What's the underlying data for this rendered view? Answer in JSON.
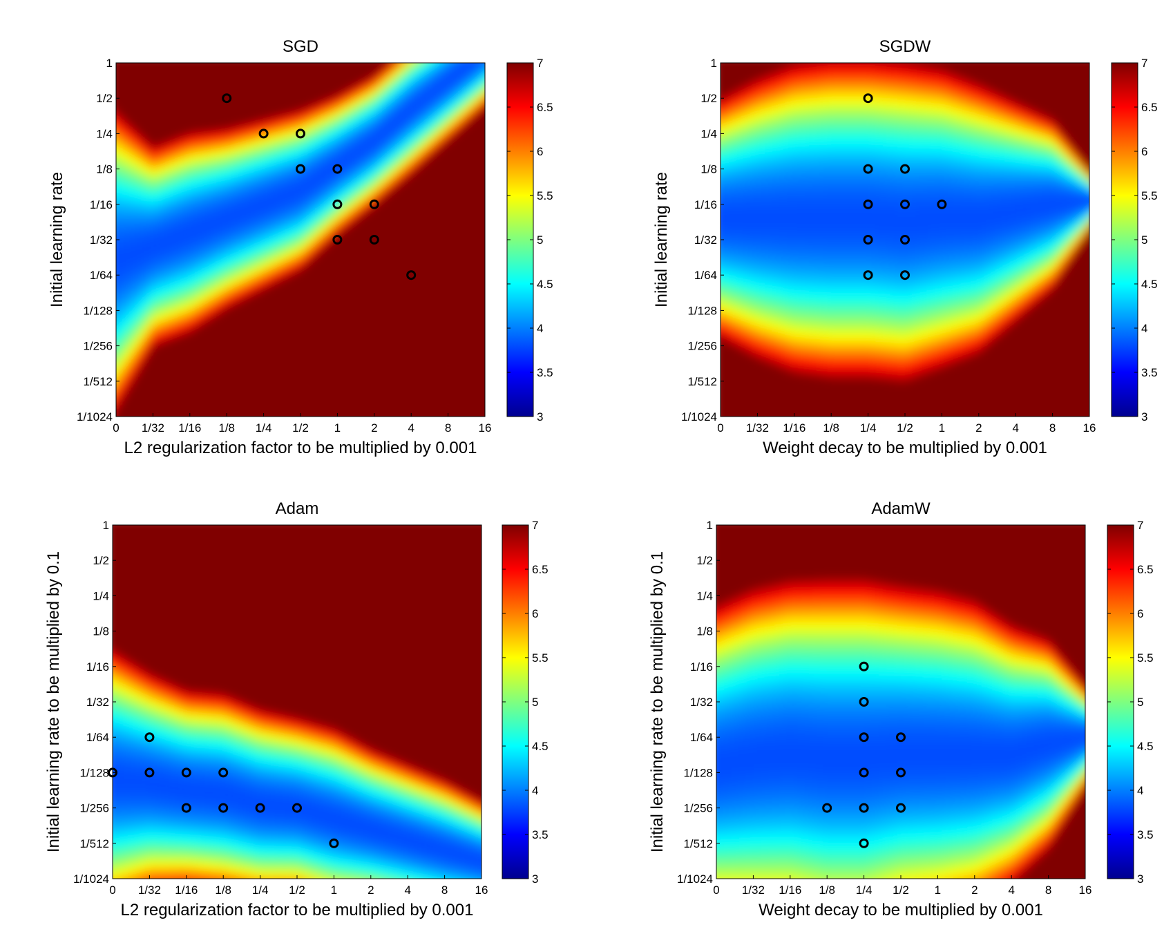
{
  "chart_data": [
    {
      "type": "heatmap",
      "title": "SGD",
      "xlabel": "L2 regularization factor to be multiplied by 0.001",
      "ylabel": "Initial learning rate",
      "x_categories": [
        "0",
        "1/32",
        "1/16",
        "1/8",
        "1/4",
        "1/2",
        "1",
        "2",
        "4",
        "8",
        "16"
      ],
      "y_categories": [
        "1",
        "1/2",
        "1/4",
        "1/8",
        "1/16",
        "1/32",
        "1/64",
        "1/128",
        "1/256",
        "1/512",
        "1/1024"
      ],
      "colorbar": {
        "min": 3,
        "max": 7,
        "ticks": [
          "3",
          "3.5",
          "4",
          "4.5",
          "5",
          "5.5",
          "6",
          "6.5",
          "7"
        ],
        "colormap": "jet"
      },
      "valley": [
        [
          0,
          5.6,
          3
        ],
        [
          1,
          5.2,
          2
        ],
        [
          2,
          4.8,
          2
        ],
        [
          3,
          4.4,
          1.8
        ],
        [
          4,
          4.0,
          1.7
        ],
        [
          5,
          3.6,
          1.6
        ],
        [
          6,
          2.9,
          1.4
        ],
        [
          7,
          2.2,
          1.3
        ],
        [
          8,
          1.3,
          1.3
        ],
        [
          9,
          0.5,
          1.2
        ],
        [
          10,
          -0.3,
          1.1
        ]
      ],
      "best_points": [
        {
          "x": "1/8",
          "y": "1/2"
        },
        {
          "x": "1/4",
          "y": "1/4"
        },
        {
          "x": "1/2",
          "y": "1/4"
        },
        {
          "x": "1/2",
          "y": "1/8"
        },
        {
          "x": "1",
          "y": "1/8"
        },
        {
          "x": "1",
          "y": "1/16"
        },
        {
          "x": "2",
          "y": "1/16"
        },
        {
          "x": "1",
          "y": "1/32"
        },
        {
          "x": "2",
          "y": "1/32"
        },
        {
          "x": "4",
          "y": "1/64"
        }
      ]
    },
    {
      "type": "heatmap",
      "title": "SGDW",
      "xlabel": "Weight decay to be multiplied by 0.001",
      "ylabel": "Initial learning rate",
      "x_categories": [
        "0",
        "1/32",
        "1/16",
        "1/8",
        "1/4",
        "1/2",
        "1",
        "2",
        "4",
        "8",
        "16"
      ],
      "y_categories": [
        "1",
        "1/2",
        "1/4",
        "1/8",
        "1/16",
        "1/32",
        "1/64",
        "1/128",
        "1/256",
        "1/512",
        "1/1024"
      ],
      "colorbar": {
        "min": 3,
        "max": 7,
        "ticks": [
          "3",
          "3.5",
          "4",
          "4.5",
          "5",
          "5.5",
          "6",
          "6.5",
          "7"
        ],
        "colormap": "jet"
      },
      "valley": [
        [
          0,
          4.4,
          2.4
        ],
        [
          1,
          4.4,
          2.8
        ],
        [
          2,
          4.4,
          3.1
        ],
        [
          3,
          4.4,
          3.2
        ],
        [
          4,
          4.4,
          3.2
        ],
        [
          5,
          4.5,
          3.2
        ],
        [
          6,
          4.4,
          3.0
        ],
        [
          7,
          4.4,
          2.7
        ],
        [
          8,
          4.2,
          2.2
        ],
        [
          9,
          4.0,
          1.7
        ],
        [
          10,
          3.9,
          0.6
        ]
      ],
      "best_points": [
        {
          "x": "1/4",
          "y": "1/2"
        },
        {
          "x": "1/4",
          "y": "1/8"
        },
        {
          "x": "1/2",
          "y": "1/8"
        },
        {
          "x": "1/4",
          "y": "1/16"
        },
        {
          "x": "1/2",
          "y": "1/16"
        },
        {
          "x": "1",
          "y": "1/16"
        },
        {
          "x": "1/4",
          "y": "1/32"
        },
        {
          "x": "1/2",
          "y": "1/32"
        },
        {
          "x": "1/4",
          "y": "1/64"
        },
        {
          "x": "1/2",
          "y": "1/64"
        }
      ]
    },
    {
      "type": "heatmap",
      "title": "Adam",
      "xlabel": "L2 regularization factor to be multiplied by 0.001",
      "ylabel": "Initial learning rate to be multiplied by 0.1",
      "x_categories": [
        "0",
        "1/32",
        "1/16",
        "1/8",
        "1/4",
        "1/2",
        "1",
        "2",
        "4",
        "8",
        "16"
      ],
      "y_categories": [
        "1",
        "1/2",
        "1/4",
        "1/8",
        "1/16",
        "1/32",
        "1/64",
        "1/128",
        "1/256",
        "1/512",
        "1/1024"
      ],
      "colorbar": {
        "min": 3,
        "max": 7,
        "ticks": [
          "3",
          "3.5",
          "4",
          "4.5",
          "5",
          "5.5",
          "6",
          "6.5",
          "7"
        ],
        "colormap": "jet"
      },
      "valley": [
        [
          0,
          7.2,
          2.6
        ],
        [
          1,
          7.3,
          2.2
        ],
        [
          2,
          7.5,
          2.0
        ],
        [
          3,
          7.6,
          2.0
        ],
        [
          4,
          7.9,
          1.9
        ],
        [
          5,
          8.0,
          1.8
        ],
        [
          6,
          8.3,
          1.8
        ],
        [
          7,
          8.6,
          1.6
        ],
        [
          8,
          8.9,
          1.5
        ],
        [
          9,
          9.2,
          1.4
        ],
        [
          10,
          9.5,
          1.2
        ]
      ],
      "best_points": [
        {
          "x": "1/32",
          "y": "1/64"
        },
        {
          "x": "0",
          "y": "1/128"
        },
        {
          "x": "1/32",
          "y": "1/128"
        },
        {
          "x": "1/16",
          "y": "1/128"
        },
        {
          "x": "1/8",
          "y": "1/128"
        },
        {
          "x": "1/16",
          "y": "1/256"
        },
        {
          "x": "1/8",
          "y": "1/256"
        },
        {
          "x": "1/4",
          "y": "1/256"
        },
        {
          "x": "1/2",
          "y": "1/256"
        },
        {
          "x": "1",
          "y": "1/512"
        }
      ]
    },
    {
      "type": "heatmap",
      "title": "AdamW",
      "xlabel": "Weight decay to be multiplied by 0.001",
      "ylabel": "Initial learning rate to be multiplied by 0.1",
      "x_categories": [
        "0",
        "1/32",
        "1/16",
        "1/8",
        "1/4",
        "1/2",
        "1",
        "2",
        "4",
        "8",
        "16"
      ],
      "y_categories": [
        "1",
        "1/2",
        "1/4",
        "1/8",
        "1/16",
        "1/32",
        "1/64",
        "1/128",
        "1/256",
        "1/512",
        "1/1024"
      ],
      "colorbar": {
        "min": 3,
        "max": 7,
        "ticks": [
          "3",
          "3.5",
          "4",
          "4.5",
          "5",
          "5.5",
          "6",
          "6.5",
          "7"
        ],
        "colormap": "jet"
      },
      "valley": [
        [
          0,
          6.8,
          3.2
        ],
        [
          1,
          6.6,
          3.4
        ],
        [
          2,
          6.5,
          3.5
        ],
        [
          3,
          6.6,
          3.6
        ],
        [
          4,
          6.6,
          3.6
        ],
        [
          5,
          6.5,
          3.4
        ],
        [
          6,
          6.5,
          3.3
        ],
        [
          7,
          6.5,
          3.1
        ],
        [
          8,
          6.5,
          2.6
        ],
        [
          9,
          6.2,
          2.1
        ],
        [
          10,
          6.0,
          1.0
        ]
      ],
      "best_points": [
        {
          "x": "1/4",
          "y": "1/16"
        },
        {
          "x": "1/4",
          "y": "1/32"
        },
        {
          "x": "1/4",
          "y": "1/64"
        },
        {
          "x": "1/2",
          "y": "1/64"
        },
        {
          "x": "1/4",
          "y": "1/128"
        },
        {
          "x": "1/2",
          "y": "1/128"
        },
        {
          "x": "1/8",
          "y": "1/256"
        },
        {
          "x": "1/4",
          "y": "1/256"
        },
        {
          "x": "1/2",
          "y": "1/256"
        },
        {
          "x": "1/4",
          "y": "1/512"
        }
      ]
    }
  ]
}
